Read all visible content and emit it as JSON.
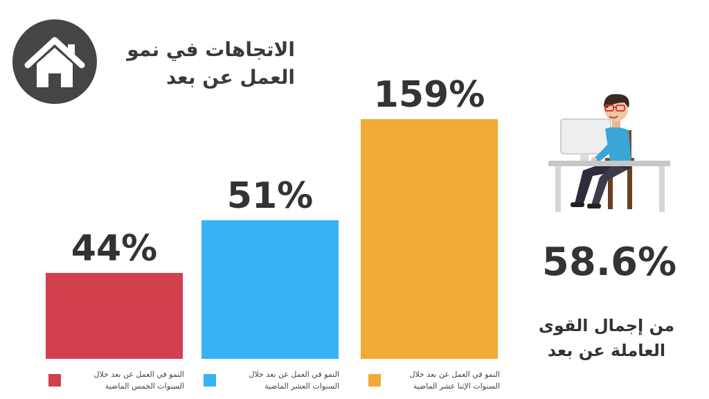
{
  "title": {
    "line1": "الاتجاهات في نمو",
    "line2": "العمل عن بعد"
  },
  "icons": {
    "home": "home-icon",
    "worker": "remote-worker-at-desk-illustration"
  },
  "chart_data": {
    "type": "bar",
    "categories": [
      "النمو في العمل عن بعد خلال السنوات الخمس الماضية",
      "النمو في العمل عن بعد خلال السنوات العشر الماضية",
      "النمو في العمل عن بعد خلال السنوات الإثنا عشر الماضية"
    ],
    "values": [
      44,
      51,
      159
    ],
    "value_labels": [
      "44%",
      "51%",
      "159%"
    ],
    "colors": [
      "#d23f4d",
      "#36b3f5",
      "#f0aa35"
    ],
    "unit": "%",
    "grid": false,
    "legend": "bottom"
  },
  "legend": [
    {
      "line1": "النمو في العمل عن بعد خلال",
      "line2": "السنوات الخمس الماضية",
      "color": "#d23f4d"
    },
    {
      "line1": "النمو في العمل عن بعد خلال",
      "line2": "السنوات العشر الماضية",
      "color": "#36b3f5"
    },
    {
      "line1": "النمو في العمل عن بعد خلال",
      "line2": "السنوات الإثنا عشر الماضية",
      "color": "#f0aa35"
    }
  ],
  "stat": {
    "value": "58.6%",
    "caption_line1": "من إجمال القوى",
    "caption_line2": "العاملة  عن بعد"
  }
}
